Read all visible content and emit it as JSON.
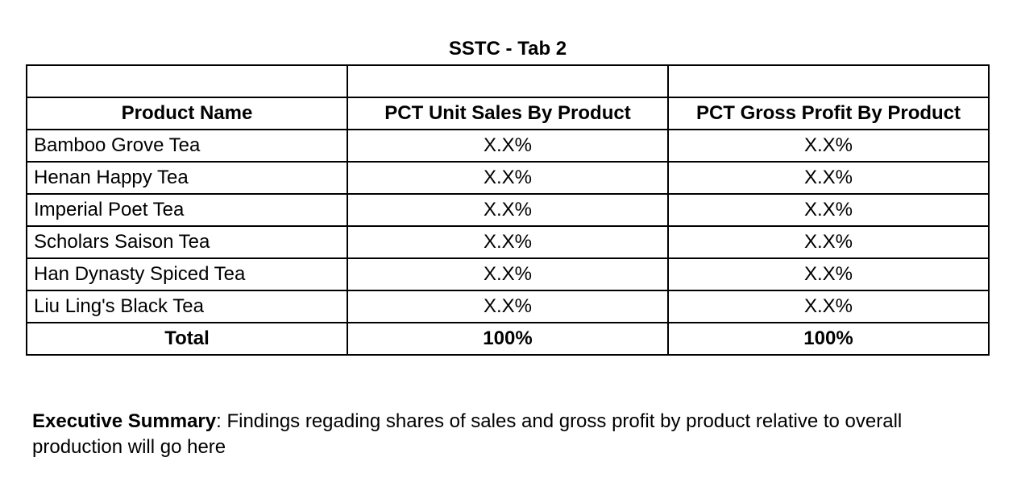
{
  "title": "SSTC - Tab 2",
  "table": {
    "blank_header": [
      "",
      "",
      ""
    ],
    "headers": [
      "Product Name",
      "PCT Unit Sales By Product",
      "PCT Gross Profit By Product"
    ],
    "rows": [
      {
        "name": "Bamboo Grove Tea",
        "unit_sales": "X.X%",
        "gross_profit": "X.X%"
      },
      {
        "name": "Henan Happy Tea",
        "unit_sales": "X.X%",
        "gross_profit": "X.X%"
      },
      {
        "name": "Imperial Poet Tea",
        "unit_sales": "X.X%",
        "gross_profit": "X.X%"
      },
      {
        "name": "Scholars Saison Tea",
        "unit_sales": "X.X%",
        "gross_profit": "X.X%"
      },
      {
        "name": "Han Dynasty Spiced Tea",
        "unit_sales": "X.X%",
        "gross_profit": "X.X%"
      },
      {
        "name": "Liu Ling's Black Tea",
        "unit_sales": "X.X%",
        "gross_profit": "X.X%"
      }
    ],
    "total": {
      "label": "Total",
      "unit_sales": "100%",
      "gross_profit": "100%"
    }
  },
  "summary": {
    "label": "Executive Summary",
    "text": ": Findings regading shares of sales and gross profit by product relative to overall production will go here"
  }
}
